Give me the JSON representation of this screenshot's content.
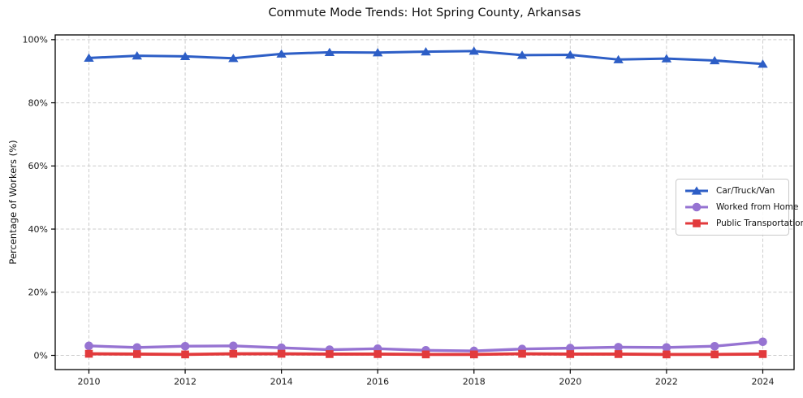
{
  "chart_data": {
    "type": "line",
    "title": "Commute Mode Trends: Hot Spring County, Arkansas",
    "xlabel": "",
    "ylabel": "Percentage of Workers (%)",
    "x": [
      2010,
      2011,
      2012,
      2013,
      2014,
      2015,
      2016,
      2017,
      2018,
      2019,
      2020,
      2021,
      2022,
      2023,
      2024
    ],
    "series": [
      {
        "name": "Car/Truck/Van",
        "color": "#2d5ec6",
        "marker": "triangle",
        "linewidth": 3,
        "values": [
          94.2,
          94.9,
          94.7,
          94.1,
          95.5,
          96.0,
          95.9,
          96.2,
          96.4,
          95.1,
          95.2,
          93.7,
          94.0,
          93.4,
          92.3
        ]
      },
      {
        "name": "Worked from Home",
        "color": "#9673d2",
        "marker": "circle",
        "linewidth": 3.4,
        "values": [
          3.0,
          2.5,
          2.9,
          3.0,
          2.4,
          1.8,
          2.1,
          1.6,
          1.4,
          2.0,
          2.3,
          2.6,
          2.5,
          2.9,
          4.3
        ]
      },
      {
        "name": "Public Transportation",
        "color": "#e23a3c",
        "marker": "square",
        "linewidth": 3.8,
        "values": [
          0.5,
          0.4,
          0.3,
          0.5,
          0.5,
          0.4,
          0.4,
          0.3,
          0.3,
          0.5,
          0.4,
          0.4,
          0.3,
          0.3,
          0.4
        ]
      }
    ],
    "xlim": [
      2009.3,
      2024.65
    ],
    "ylim": [
      -4.5,
      101.5
    ],
    "x_ticks": [
      2010,
      2012,
      2014,
      2016,
      2018,
      2020,
      2022,
      2024
    ],
    "x_tick_labels": [
      "2010",
      "2012",
      "2014",
      "2016",
      "2018",
      "2020",
      "2022",
      "2024"
    ],
    "y_ticks": [
      0,
      20,
      40,
      60,
      80,
      100
    ],
    "y_tick_labels": [
      "0%",
      "20%",
      "40%",
      "60%",
      "80%",
      "100%"
    ],
    "grid": true,
    "grid_style": "dashed",
    "legend_position": "center right"
  }
}
